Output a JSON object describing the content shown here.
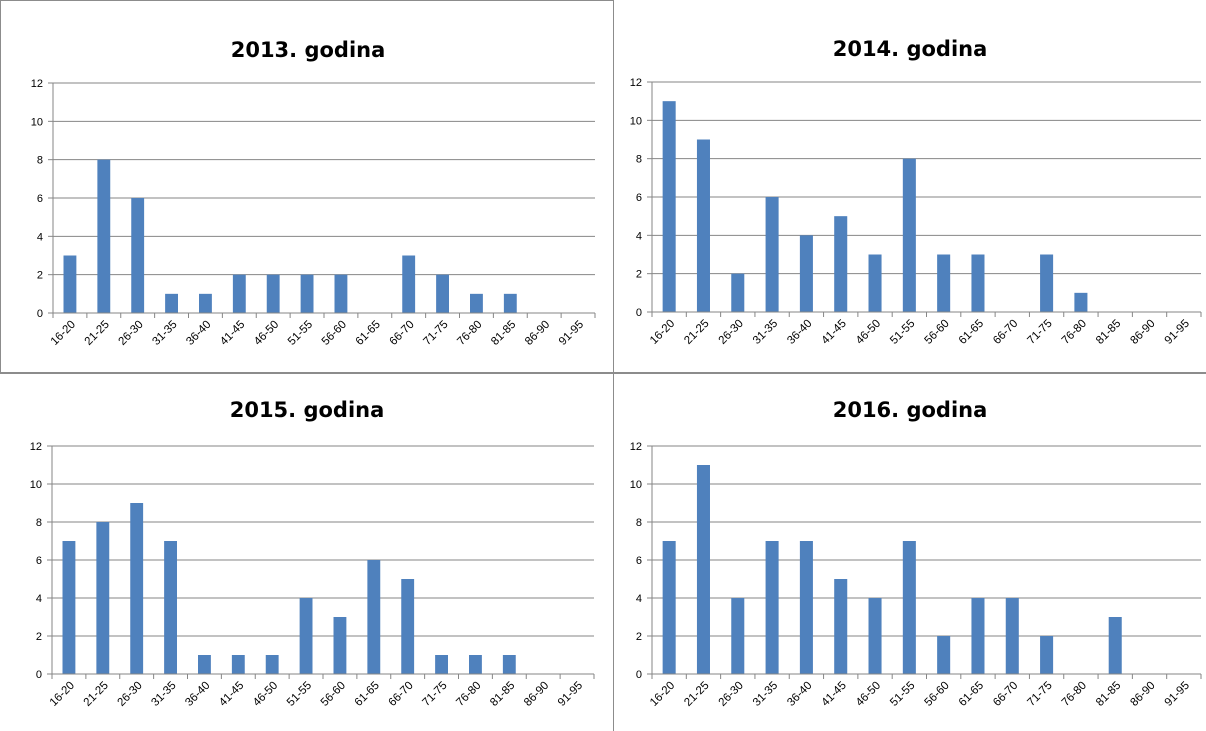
{
  "chart_data": [
    {
      "type": "bar",
      "title": "2013. godina",
      "categories": [
        "16-20",
        "21-25",
        "26-30",
        "31-35",
        "36-40",
        "41-45",
        "46-50",
        "51-55",
        "56-60",
        "61-65",
        "66-70",
        "71-75",
        "76-80",
        "81-85",
        "86-90",
        "91-95"
      ],
      "values": [
        3,
        8,
        6,
        1,
        1,
        2,
        2,
        2,
        2,
        0,
        3,
        2,
        1,
        1,
        0,
        0
      ],
      "ylim": [
        0,
        12
      ],
      "yticks": [
        "0",
        "2",
        "4",
        "6",
        "8",
        "10",
        "12"
      ],
      "grid": true,
      "legend": "none",
      "bar_color": "#4f81bd"
    },
    {
      "type": "bar",
      "title": "2014. godina",
      "categories": [
        "16-20",
        "21-25",
        "26-30",
        "31-35",
        "36-40",
        "41-45",
        "46-50",
        "51-55",
        "56-60",
        "61-65",
        "66-70",
        "71-75",
        "76-80",
        "81-85",
        "86-90",
        "91-95"
      ],
      "values": [
        11,
        9,
        2,
        6,
        4,
        5,
        3,
        8,
        3,
        3,
        0,
        3,
        1,
        0,
        0,
        0
      ],
      "ylim": [
        0,
        12
      ],
      "yticks": [
        "0",
        "2",
        "4",
        "6",
        "8",
        "10",
        "12"
      ],
      "grid": true,
      "legend": "none",
      "bar_color": "#4f81bd"
    },
    {
      "type": "bar",
      "title": "2015. godina",
      "categories": [
        "16-20",
        "21-25",
        "26-30",
        "31-35",
        "36-40",
        "41-45",
        "46-50",
        "51-55",
        "56-60",
        "61-65",
        "66-70",
        "71-75",
        "76-80",
        "81-85",
        "86-90",
        "91-95"
      ],
      "values": [
        7,
        8,
        9,
        7,
        1,
        1,
        1,
        4,
        3,
        6,
        5,
        1,
        1,
        1,
        0,
        0
      ],
      "ylim": [
        0,
        12
      ],
      "yticks": [
        "0",
        "2",
        "4",
        "6",
        "8",
        "10",
        "12"
      ],
      "grid": true,
      "legend": "none",
      "bar_color": "#4f81bd"
    },
    {
      "type": "bar",
      "title": "2016. godina",
      "categories": [
        "16-20",
        "21-25",
        "26-30",
        "31-35",
        "36-40",
        "41-45",
        "46-50",
        "51-55",
        "56-60",
        "61-65",
        "66-70",
        "71-75",
        "76-80",
        "81-85",
        "86-90",
        "91-95"
      ],
      "values": [
        7,
        11,
        4,
        7,
        7,
        5,
        4,
        7,
        2,
        4,
        4,
        2,
        0,
        3,
        0,
        0
      ],
      "ylim": [
        0,
        12
      ],
      "yticks": [
        "0",
        "2",
        "4",
        "6",
        "8",
        "10",
        "12"
      ],
      "grid": true,
      "legend": "none",
      "bar_color": "#4f81bd"
    }
  ]
}
